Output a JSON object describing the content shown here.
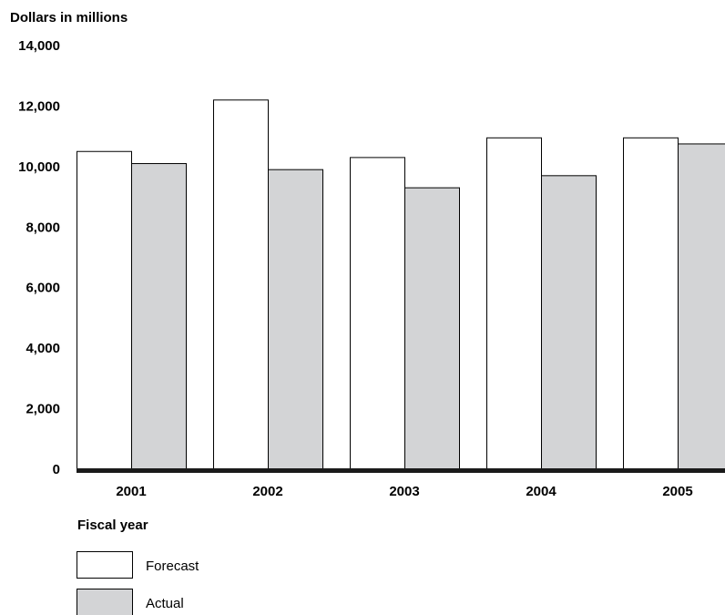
{
  "chart_data": {
    "type": "bar",
    "ylabel": "Dollars in millions",
    "xlabel": "Fiscal year",
    "categories": [
      "2001",
      "2002",
      "2003",
      "2004",
      "2005"
    ],
    "ylim": [
      0,
      14000
    ],
    "yticks": [
      0,
      2000,
      4000,
      6000,
      8000,
      10000,
      12000,
      14000
    ],
    "ytick_labels": [
      "0",
      "2,000",
      "4,000",
      "6,000",
      "8,000",
      "10,000",
      "12,000",
      "14,000"
    ],
    "grid": false,
    "legend_position": "bottom-left",
    "series": [
      {
        "name": "Forecast",
        "color": "#ffffff",
        "values": [
          10500,
          12200,
          10300,
          10950,
          10950
        ]
      },
      {
        "name": "Actual",
        "color": "#d3d4d6",
        "values": [
          10100,
          9900,
          9300,
          9700,
          10750
        ]
      }
    ]
  }
}
